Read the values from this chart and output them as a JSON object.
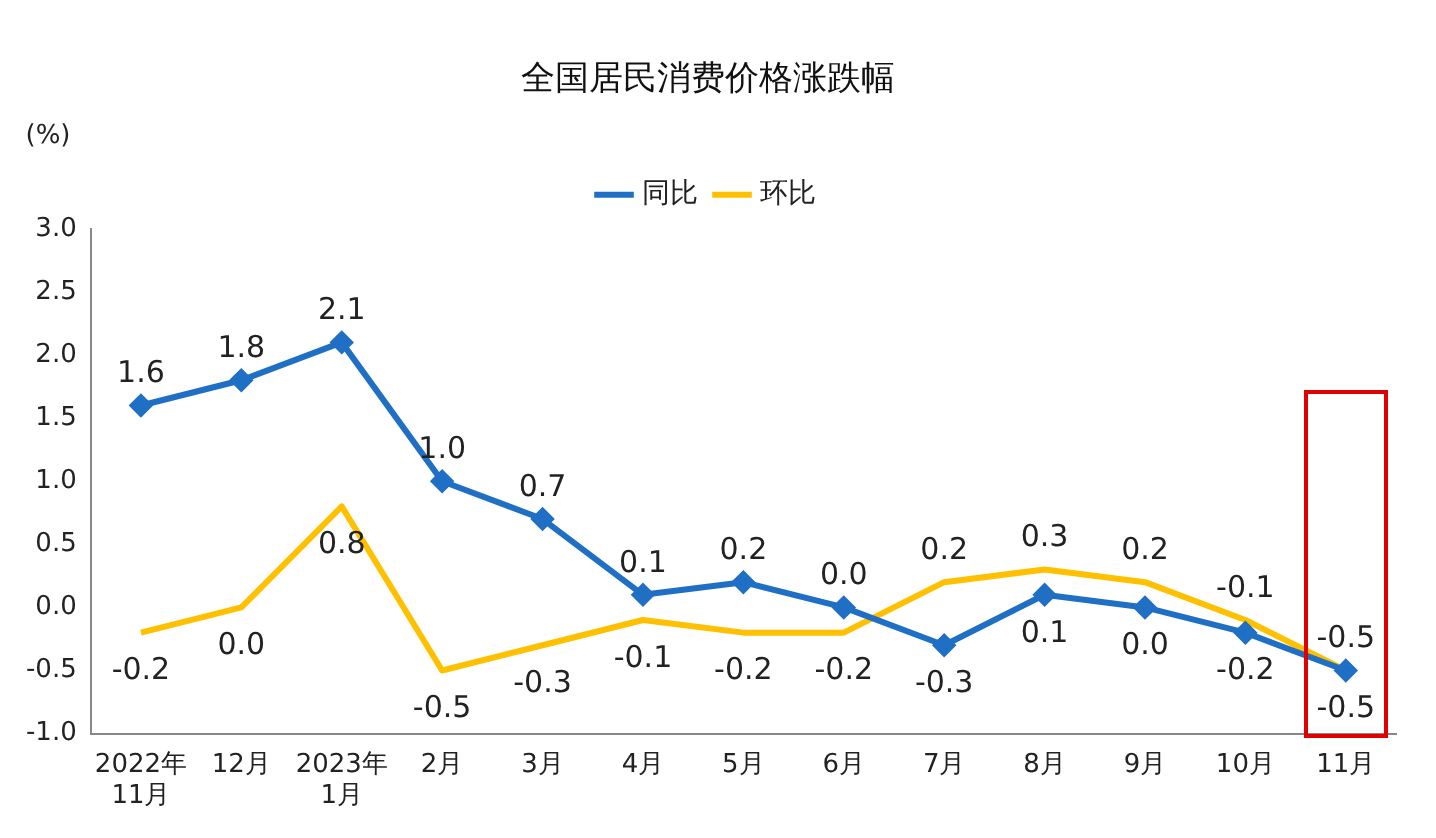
{
  "chart_data": {
    "type": "line",
    "title": "全国居民消费价格涨跌幅",
    "ylabel": "(%)",
    "categories": [
      "2022年\n11月",
      "12月",
      "2023年\n1月",
      "2月",
      "3月",
      "4月",
      "5月",
      "6月",
      "7月",
      "8月",
      "9月",
      "10月",
      "11月"
    ],
    "series": [
      {
        "name": "同比",
        "color": "#1f6fc5",
        "marker": "diamond",
        "values": [
          1.6,
          1.8,
          2.1,
          1.0,
          0.7,
          0.1,
          0.2,
          0.0,
          -0.3,
          0.1,
          0.0,
          -0.2,
          -0.5
        ],
        "value_labels": [
          "1.6",
          "1.8",
          "2.1",
          "1.0",
          "0.7",
          "0.1",
          "0.2",
          "0.0",
          "-0.3",
          "0.1",
          "0.0",
          "-0.2",
          "-0.5"
        ]
      },
      {
        "name": "环比",
        "color": "#ffc000",
        "marker": "none",
        "values": [
          -0.2,
          0.0,
          0.8,
          -0.5,
          -0.3,
          -0.1,
          -0.2,
          -0.2,
          0.2,
          0.3,
          0.2,
          -0.1,
          -0.5
        ],
        "value_labels": [
          "-0.2",
          "0.0",
          "0.8",
          "-0.5",
          "-0.3",
          "-0.1",
          "-0.2",
          "-0.2",
          "0.2",
          "0.3",
          "0.2",
          "-0.1",
          "-0.5"
        ]
      }
    ],
    "ylim": [
      -1,
      3
    ],
    "yticks": [
      {
        "value": -1,
        "label": "-1.0"
      },
      {
        "value": -0.5,
        "label": "-0.5"
      },
      {
        "value": 0,
        "label": "0.0"
      },
      {
        "value": 0.5,
        "label": "0.5"
      },
      {
        "value": 1,
        "label": "1.0"
      },
      {
        "value": 1.5,
        "label": "1.5"
      },
      {
        "value": 2,
        "label": "2.0"
      },
      {
        "value": 2.5,
        "label": "2.5"
      },
      {
        "value": 3,
        "label": "3.0"
      }
    ],
    "grid": false,
    "legend": "top",
    "line_style": "solid"
  }
}
